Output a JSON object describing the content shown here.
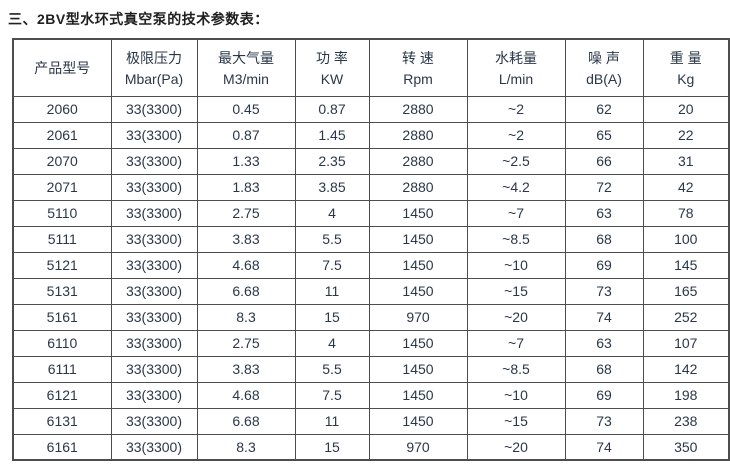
{
  "title": "三、2BV型水环式真空泵的技术参数表：",
  "colors": {
    "text": "#2b3749",
    "title": "#1f1f1f",
    "border": "#4d4d4d",
    "background": "#ffffff"
  },
  "table": {
    "columns": [
      {
        "key": "model",
        "zh": "产品型号",
        "en": ""
      },
      {
        "key": "ultimate_pressure",
        "zh": "极限压力",
        "en": "Mbar(Pa)"
      },
      {
        "key": "max_capacity",
        "zh": "最大气量",
        "en": "M3/min"
      },
      {
        "key": "power",
        "zh": "功 率",
        "en": "KW"
      },
      {
        "key": "speed",
        "zh": "转 速",
        "en": "Rpm"
      },
      {
        "key": "water_consumption",
        "zh": "水耗量",
        "en": "L/min"
      },
      {
        "key": "noise",
        "zh": "噪 声",
        "en": "dB(A)"
      },
      {
        "key": "weight",
        "zh": "重 量",
        "en": "Kg"
      }
    ],
    "rows": [
      [
        "2060",
        "33(3300)",
        "0.45",
        "0.87",
        "2880",
        "~2",
        "62",
        "20"
      ],
      [
        "2061",
        "33(3300)",
        "0.87",
        "1.45",
        "2880",
        "~2",
        "65",
        "22"
      ],
      [
        "2070",
        "33(3300)",
        "1.33",
        "2.35",
        "2880",
        "~2.5",
        "66",
        "31"
      ],
      [
        "2071",
        "33(3300)",
        "1.83",
        "3.85",
        "2880",
        "~4.2",
        "72",
        "42"
      ],
      [
        "5110",
        "33(3300)",
        "2.75",
        "4",
        "1450",
        "~7",
        "63",
        "78"
      ],
      [
        "5111",
        "33(3300)",
        "3.83",
        "5.5",
        "1450",
        "~8.5",
        "68",
        "100"
      ],
      [
        "5121",
        "33(3300)",
        "4.68",
        "7.5",
        "1450",
        "~10",
        "69",
        "145"
      ],
      [
        "5131",
        "33(3300)",
        "6.68",
        "11",
        "1450",
        "~15",
        "73",
        "165"
      ],
      [
        "5161",
        "33(3300)",
        "8.3",
        "15",
        "970",
        "~20",
        "74",
        "252"
      ],
      [
        "6110",
        "33(3300)",
        "2.75",
        "4",
        "1450",
        "~7",
        "63",
        "107"
      ],
      [
        "6111",
        "33(3300)",
        "3.83",
        "5.5",
        "1450",
        "~8.5",
        "68",
        "142"
      ],
      [
        "6121",
        "33(3300)",
        "4.68",
        "7.5",
        "1450",
        "~10",
        "69",
        "198"
      ],
      [
        "6131",
        "33(3300)",
        "6.68",
        "11",
        "1450",
        "~15",
        "73",
        "238"
      ],
      [
        "6161",
        "33(3300)",
        "8.3",
        "15",
        "970",
        "~20",
        "74",
        "350"
      ]
    ]
  }
}
